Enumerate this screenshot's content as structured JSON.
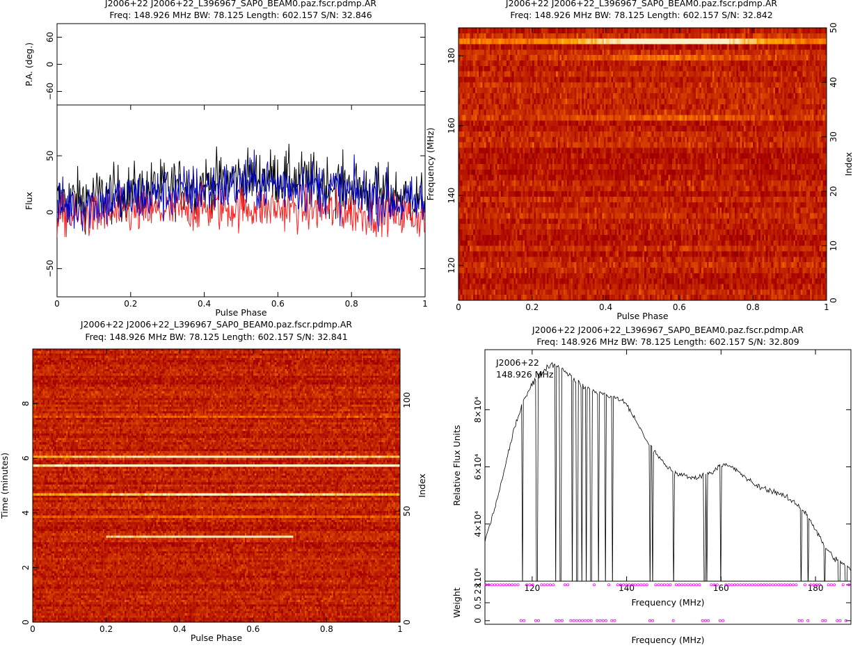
{
  "panels": {
    "profile": {
      "title1": "J2006+22  J2006+22_L396967_SAP0_BEAM0.paz.fscr.pdmp.AR",
      "title2": "Freq: 148.926 MHz BW: 78.125 Length: 602.157 S/N: 32.846"
    },
    "freq_phase": {
      "title1": "J2006+22  J2006+22_L396967_SAP0_BEAM0.paz.fscr.pdmp.AR",
      "title2": "Freq: 148.926 MHz BW: 78.125 Length: 602.157 S/N: 32.842"
    },
    "time_phase": {
      "title1": "J2006+22  J2006+22_L396967_SAP0_BEAM0.paz.fscr.pdmp.AR",
      "title2": "Freq: 148.926 MHz BW: 78.125 Length: 602.157 S/N: 32.841"
    },
    "bandpass": {
      "title1": "J2006+22  J2006+22_L396967_SAP0_BEAM0.paz.fscr.pdmp.AR",
      "title2": "Freq: 148.926 MHz BW: 78.125 Length: 602.157 S/N: 32.809",
      "annotation1": "J2006+22",
      "annotation2": "148.926 MHz"
    }
  },
  "colors": {
    "stokes_i": "#000000",
    "linear": "#ff2020",
    "circular": "#0000c8",
    "weights": "#ff00ff"
  },
  "chart_data": [
    {
      "id": "pa",
      "type": "scatter",
      "title": "",
      "xlabel": "",
      "ylabel": "P.A. (deg.)",
      "xlim": [
        0,
        1
      ],
      "ylim": [
        -90,
        90
      ],
      "yticks": [
        "60",
        "0",
        "−60"
      ],
      "ytick_values": [
        60,
        0,
        -60
      ],
      "points": []
    },
    {
      "id": "profile",
      "type": "line",
      "title": "J2006+22  J2006+22_L396967_SAP0_BEAM0.paz.fscr.pdmp.AR",
      "xlabel": "Pulse Phase",
      "ylabel": "Flux",
      "xlim": [
        0,
        1
      ],
      "ylim": [
        -75,
        95
      ],
      "xticks": [
        "0",
        "0.2",
        "0.4",
        "0.6",
        "0.8",
        "1"
      ],
      "xtick_values": [
        0,
        0.2,
        0.4,
        0.6,
        0.8,
        1
      ],
      "yticks": [
        "−50",
        "0",
        "50"
      ],
      "ytick_values": [
        -50,
        0,
        50
      ],
      "series": [
        {
          "color": "#000000",
          "values": [
            10,
            12,
            14,
            16,
            18,
            20,
            22,
            24,
            26,
            28,
            30,
            31,
            31,
            29,
            27,
            25,
            22,
            19,
            16,
            13,
            10
          ],
          "noise": 18
        },
        {
          "color": "#ff2020",
          "values": [
            -5,
            -4,
            -3,
            -2,
            -1,
            0,
            1,
            2,
            3,
            3,
            4,
            4,
            3,
            3,
            2,
            1,
            0,
            -1,
            -2,
            -3,
            -4
          ],
          "noise": 14
        },
        {
          "color": "#0000c8",
          "values": [
            5,
            6,
            8,
            10,
            12,
            14,
            16,
            18,
            20,
            22,
            24,
            25,
            25,
            24,
            22,
            20,
            17,
            14,
            11,
            8,
            6
          ],
          "noise": 17
        }
      ],
      "x": [
        0,
        0.05,
        0.1,
        0.15,
        0.2,
        0.25,
        0.3,
        0.35,
        0.4,
        0.45,
        0.5,
        0.55,
        0.6,
        0.65,
        0.7,
        0.75,
        0.8,
        0.85,
        0.9,
        0.95,
        1
      ]
    },
    {
      "id": "freq_phase",
      "type": "heatmap",
      "title": "J2006+22  J2006+22_L396967_SAP0_BEAM0.paz.fscr.pdmp.AR",
      "xlabel": "Pulse Phase",
      "ylabel": "Frequency (MHz)",
      "right_ylabel": "Index",
      "xlim": [
        0,
        1
      ],
      "ylim": [
        110,
        188
      ],
      "right_ylim": [
        0,
        50
      ],
      "xticks": [
        "0",
        "0.2",
        "0.4",
        "0.6",
        "0.8",
        "1"
      ],
      "xtick_values": [
        0,
        0.2,
        0.4,
        0.6,
        0.8,
        1
      ],
      "yticks": [
        "120",
        "140",
        "160",
        "180"
      ],
      "ytick_values": [
        120,
        140,
        160,
        180
      ],
      "right_yticks": [
        "0",
        "10",
        "20",
        "30",
        "40",
        "50"
      ],
      "right_ytick_values": [
        0,
        10,
        20,
        30,
        40,
        50
      ],
      "rows": 50,
      "cols": 200,
      "bright_rows": [
        {
          "index": 47,
          "strength": 0.85
        },
        {
          "index": 44,
          "strength": 0.25
        },
        {
          "index": 33,
          "strength": 0.15
        }
      ]
    },
    {
      "id": "time_phase",
      "type": "heatmap",
      "title": "J2006+22  J2006+22_L396967_SAP0_BEAM0.paz.fscr.pdmp.AR",
      "xlabel": "Pulse Phase",
      "ylabel": "Time (minutes)",
      "right_ylabel": "Index",
      "xlim": [
        0,
        1
      ],
      "ylim": [
        0,
        10
      ],
      "right_ylim": [
        0,
        123
      ],
      "xticks": [
        "0",
        "0.2",
        "0.4",
        "0.6",
        "0.8",
        "1"
      ],
      "xtick_values": [
        0,
        0.2,
        0.4,
        0.6,
        0.8,
        1
      ],
      "yticks": [
        "0",
        "2",
        "4",
        "6",
        "8"
      ],
      "ytick_values": [
        0,
        2,
        4,
        6,
        8
      ],
      "right_yticks": [
        "0",
        "50",
        "100"
      ],
      "right_ytick_values": [
        0,
        50,
        100
      ],
      "rows": 123,
      "cols": 220,
      "bright_rows": [
        {
          "time": 6.05,
          "strength": 0.8
        },
        {
          "time": 5.75,
          "strength": 0.95
        },
        {
          "time": 4.65,
          "strength": 0.7
        },
        {
          "time": 3.1,
          "strength": 0.7,
          "x_end": 0.71
        },
        {
          "time": 7.5,
          "strength": 0.2
        },
        {
          "time": 3.85,
          "strength": 0.2
        }
      ]
    },
    {
      "id": "bandpass",
      "type": "line",
      "title": "J2006+22  J2006+22_L396967_SAP0_BEAM0.paz.fscr.pdmp.AR",
      "xlabel": "Frequency (MHz)",
      "ylabel": "Relative Flux Units",
      "xlim": [
        110,
        187.5
      ],
      "ylim": [
        20000,
        101000
      ],
      "xticks": [
        "120",
        "140",
        "160",
        "180"
      ],
      "xtick_values": [
        120,
        140,
        160,
        180
      ],
      "yticks": [
        "2×10⁴",
        "4×10⁴",
        "6×10⁴",
        "8×10⁴"
      ],
      "ytick_values": [
        20000,
        40000,
        60000,
        80000
      ],
      "x": [
        110,
        112,
        114,
        116,
        118,
        120,
        122,
        124,
        126,
        128,
        130,
        132,
        134,
        136,
        138,
        140,
        142,
        144,
        146,
        148,
        150,
        152,
        154,
        156,
        158,
        160,
        162,
        164,
        166,
        168,
        170,
        172,
        174,
        176,
        178,
        180,
        182,
        184,
        186,
        187.5
      ],
      "values": [
        34000,
        45000,
        58000,
        72000,
        83000,
        89000,
        93000,
        96000,
        95000,
        92000,
        89000,
        87000,
        86000,
        85000,
        84000,
        82000,
        76000,
        70000,
        65000,
        61000,
        58000,
        57000,
        56000,
        57000,
        58000,
        61000,
        60000,
        58000,
        55000,
        53000,
        52000,
        51000,
        49000,
        47000,
        44000,
        38000,
        32000,
        28000,
        26000,
        24000
      ],
      "zapped_channels": [
        118,
        121,
        125,
        126,
        128.5,
        129.5,
        130.5,
        131.5,
        132.5,
        134,
        135.5,
        137,
        145,
        145.5,
        150,
        156.5,
        157,
        160,
        177,
        178.5,
        182,
        185,
        186.5
      ]
    },
    {
      "id": "weights",
      "type": "scatter",
      "title": "",
      "xlabel": "Frequency (MHz)",
      "ylabel": "Weight",
      "xlim": [
        110,
        187.5
      ],
      "ylim": [
        -0.1,
        1.1
      ],
      "yticks": [
        "0",
        "0.5",
        "1"
      ],
      "ytick_values": [
        0,
        0.5,
        1
      ],
      "points_one": "all channels not zapped",
      "points_zero": "zapped channels"
    }
  ]
}
